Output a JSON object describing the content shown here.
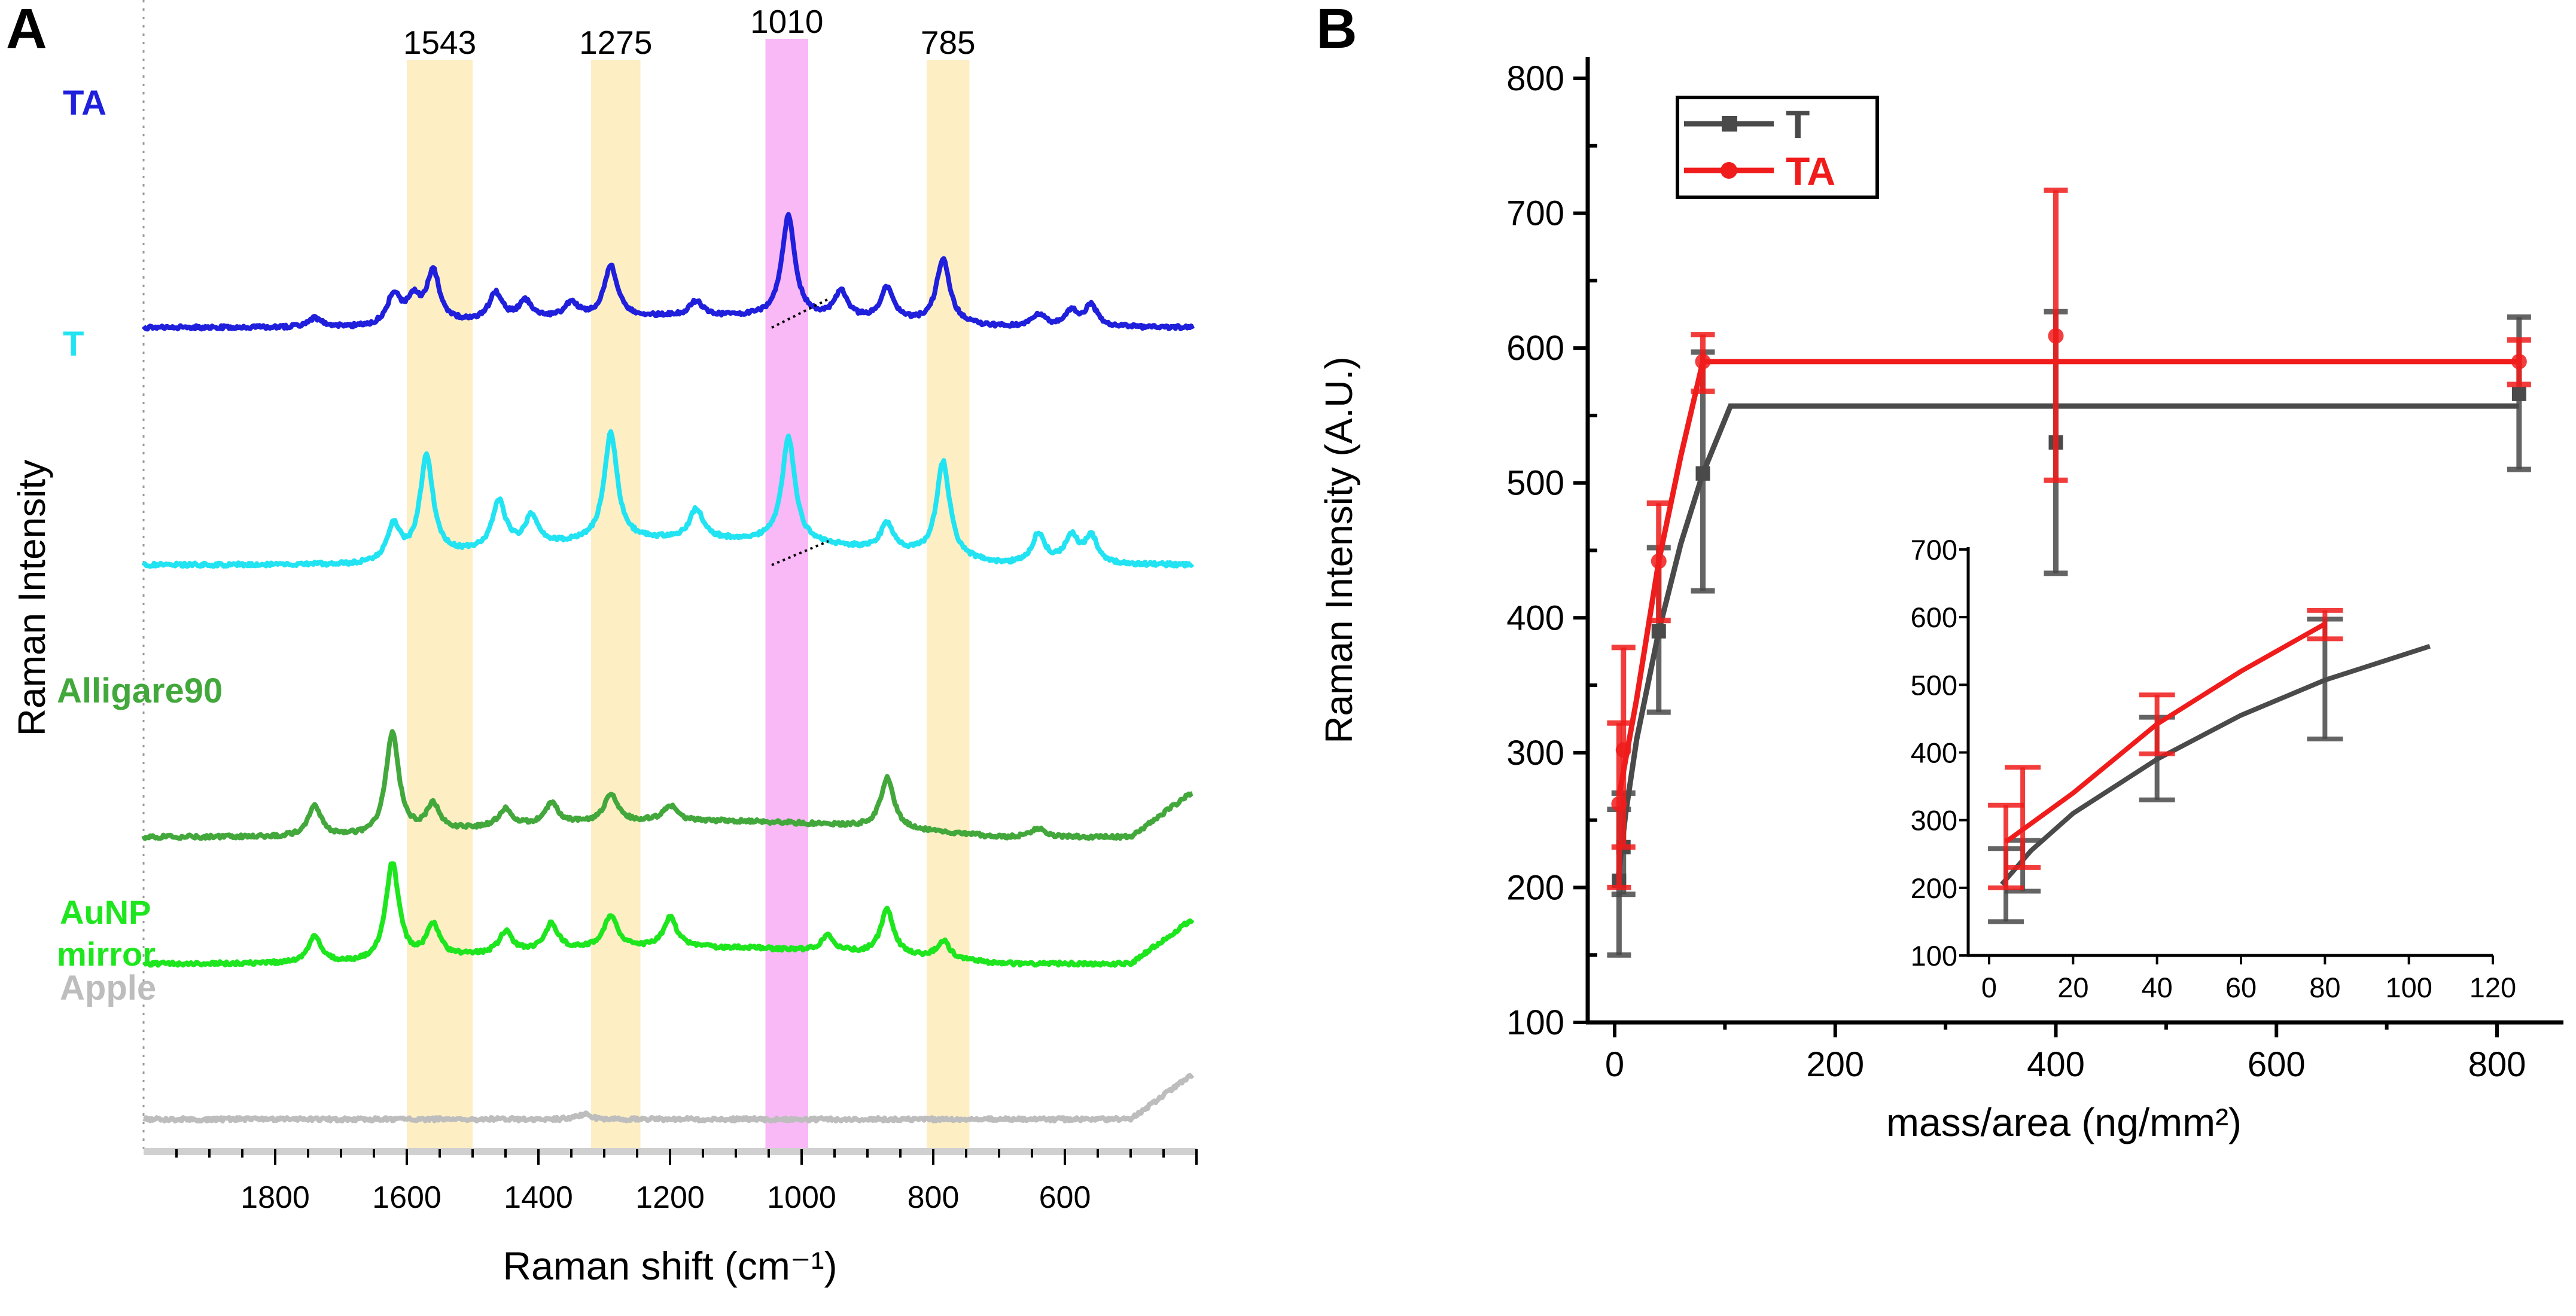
{
  "panels": {
    "a": "A",
    "b": "B"
  },
  "chart_data": [
    {
      "type": "line",
      "panel": "A",
      "xlabel": "Raman shift (cm⁻¹)",
      "ylabel": "Raman Intensity",
      "xlim": [
        2000,
        400
      ],
      "x_reversed": true,
      "xticks": [
        "1800",
        "1600",
        "1400",
        "1200",
        "1000",
        "800",
        "600"
      ],
      "bands": [
        {
          "label": "1543",
          "range": [
            1600,
            1500
          ],
          "color": "#fdeec4"
        },
        {
          "label": "1275",
          "range": [
            1320,
            1245
          ],
          "color": "#fdeec4"
        },
        {
          "label": "1010",
          "range": [
            1055,
            990
          ],
          "color": "#f9b8f6"
        },
        {
          "label": "785",
          "range": [
            810,
            745
          ],
          "color": "#fdeec4"
        }
      ],
      "series": [
        {
          "name": "TA",
          "color": "#1f1fdc",
          "offset": 548,
          "peaks": [
            [
              1740,
              15
            ],
            [
              1620,
              50
            ],
            [
              1590,
              40
            ],
            [
              1560,
              85
            ],
            [
              1465,
              45
            ],
            [
              1420,
              30
            ],
            [
              1350,
              25
            ],
            [
              1290,
              85
            ],
            [
              1160,
              25
            ],
            [
              1020,
              170
            ],
            [
              940,
              45
            ],
            [
              870,
              55
            ],
            [
              785,
              110
            ],
            [
              640,
              20
            ],
            [
              590,
              25
            ],
            [
              560,
              35
            ]
          ],
          "hump": 30
        },
        {
          "name": "T",
          "color": "#22e3f2",
          "offset": 945,
          "peaks": [
            [
              1620,
              60
            ],
            [
              1570,
              170
            ],
            [
              1460,
              80
            ],
            [
              1410,
              50
            ],
            [
              1290,
              180
            ],
            [
              1160,
              50
            ],
            [
              1020,
              175
            ],
            [
              870,
              45
            ],
            [
              785,
              160
            ],
            [
              640,
              50
            ],
            [
              590,
              45
            ],
            [
              560,
              45
            ]
          ],
          "hump": 70
        },
        {
          "name": "Alligare90",
          "color": "#43a83c",
          "offset": 1400,
          "peaks": [
            [
              1740,
              50
            ],
            [
              1622,
              170
            ],
            [
              1560,
              45
            ],
            [
              1450,
              30
            ],
            [
              1380,
              35
            ],
            [
              1290,
              45
            ],
            [
              1200,
              25
            ],
            [
              870,
              85
            ],
            [
              640,
              15
            ]
          ],
          "hump": 45
        },
        {
          "name": "AuNP mirror",
          "color": "#1ee61e",
          "offset": 1612,
          "peaks": [
            [
              1740,
              45
            ],
            [
              1622,
              165
            ],
            [
              1560,
              55
            ],
            [
              1450,
              35
            ],
            [
              1380,
              45
            ],
            [
              1290,
              55
            ],
            [
              1200,
              50
            ],
            [
              960,
              25
            ],
            [
              870,
              75
            ],
            [
              785,
              30
            ]
          ],
          "hump": 45
        },
        {
          "name": "Apple",
          "color": "#bdbdbd",
          "offset": 1872,
          "peaks": [
            [
              1330,
              8
            ]
          ],
          "hump": 0
        }
      ]
    },
    {
      "type": "scatter",
      "panel": "B",
      "xlabel": "mass/area (ng/mm²)",
      "ylabel": "Raman Intensity (A.U.)",
      "xlim": [
        0,
        800
      ],
      "ylim": [
        100,
        800
      ],
      "xticks": [
        "0",
        "200",
        "400",
        "600",
        "800"
      ],
      "yticks": [
        "100",
        "200",
        "300",
        "400",
        "500",
        "600",
        "700",
        "800"
      ],
      "legend": {
        "position": "top-left",
        "entries": [
          "T",
          "TA"
        ]
      },
      "series": [
        {
          "name": "T",
          "color": "#4a4a4a",
          "marker": "square",
          "points": [
            [
              4,
              205,
              150,
              258
            ],
            [
              8,
              230,
              195,
              270
            ],
            [
              40,
              390,
              330,
              452
            ],
            [
              80,
              507,
              420,
              597
            ],
            [
              400,
              530,
              433,
              627
            ],
            [
              820,
              566,
              510,
              623
            ]
          ],
          "fit": [
            [
              3,
              205
            ],
            [
              10,
              255
            ],
            [
              20,
              310
            ],
            [
              40,
              390
            ],
            [
              60,
              455
            ],
            [
              80,
              507
            ],
            [
              105,
              557
            ],
            [
              820,
              557
            ]
          ]
        },
        {
          "name": "TA",
          "color": "#f01c1c",
          "marker": "circle",
          "points": [
            [
              4,
              262,
              200,
              322
            ],
            [
              8,
              302,
              230,
              378
            ],
            [
              40,
              442,
              398,
              485
            ],
            [
              80,
              590,
              568,
              610
            ],
            [
              400,
              609,
              502,
              717
            ],
            [
              820,
              590,
              573,
              606
            ]
          ],
          "fit": [
            [
              4,
              268
            ],
            [
              20,
              340
            ],
            [
              40,
              442
            ],
            [
              60,
              520
            ],
            [
              80,
              590
            ],
            [
              820,
              590
            ]
          ]
        }
      ],
      "inset": {
        "xlim": [
          0,
          120
        ],
        "ylim": [
          100,
          700
        ],
        "xticks": [
          "0",
          "20",
          "40",
          "60",
          "80",
          "100",
          "120"
        ],
        "yticks": [
          "100",
          "200",
          "300",
          "400",
          "500",
          "600",
          "700"
        ]
      }
    }
  ]
}
